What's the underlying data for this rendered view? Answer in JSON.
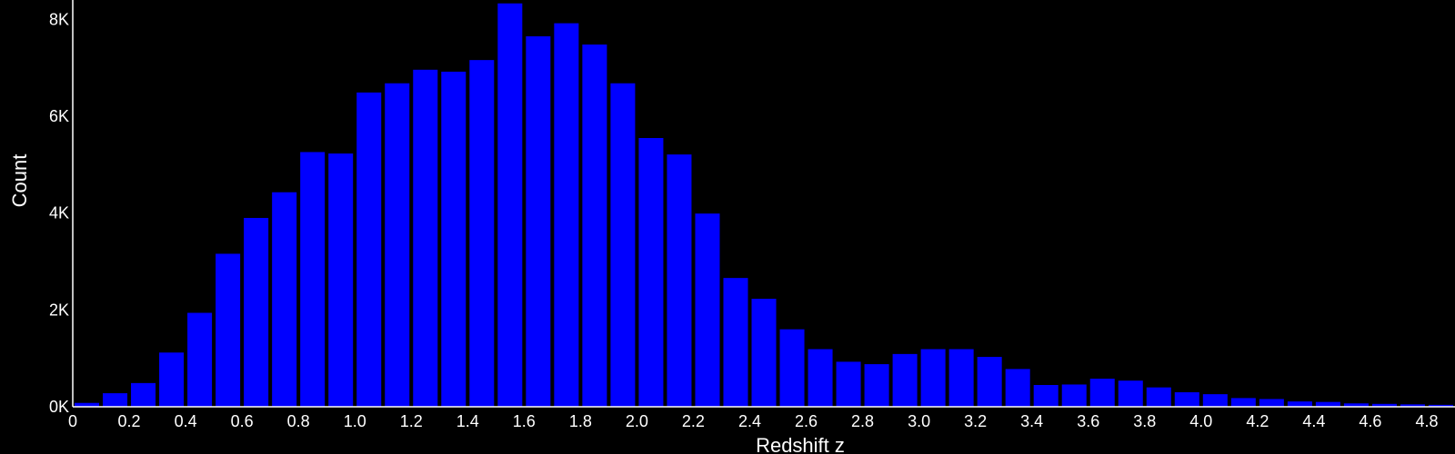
{
  "chart_data": {
    "type": "bar",
    "title": "",
    "xlabel": "Redshift z",
    "ylabel": "Count",
    "bin_width": 0.1,
    "x_bin_starts": [
      0.0,
      0.1,
      0.2,
      0.3,
      0.4,
      0.5,
      0.6,
      0.7,
      0.8,
      0.9,
      1.0,
      1.1,
      1.2,
      1.3,
      1.4,
      1.5,
      1.6,
      1.7,
      1.8,
      1.9,
      2.0,
      2.1,
      2.2,
      2.3,
      2.4,
      2.5,
      2.6,
      2.7,
      2.8,
      2.9,
      3.0,
      3.1,
      3.2,
      3.3,
      3.4,
      3.5,
      3.6,
      3.7,
      3.8,
      3.9,
      4.0,
      4.1,
      4.2,
      4.3,
      4.4,
      4.5,
      4.6,
      4.7,
      4.8
    ],
    "values": [
      80,
      280,
      490,
      1120,
      1940,
      3160,
      3900,
      4430,
      5260,
      5230,
      6490,
      6680,
      6960,
      6920,
      7160,
      8330,
      7650,
      7920,
      7480,
      6680,
      5550,
      5210,
      3990,
      2660,
      2230,
      1600,
      1190,
      930,
      880,
      1090,
      1190,
      1190,
      1030,
      780,
      450,
      460,
      580,
      540,
      400,
      300,
      260,
      180,
      160,
      110,
      100,
      70,
      60,
      50,
      40
    ],
    "xlim": [
      0,
      4.9
    ],
    "ylim": [
      0,
      8400
    ],
    "x_ticks": [
      0.0,
      0.2,
      0.4,
      0.6,
      0.8,
      1.0,
      1.2,
      1.4,
      1.6,
      1.8,
      2.0,
      2.2,
      2.4,
      2.6,
      2.8,
      3.0,
      3.2,
      3.4,
      3.6,
      3.8,
      4.0,
      4.2,
      4.4,
      4.6,
      4.8
    ],
    "x_tick_labels": [
      "0",
      "0.2",
      "0.4",
      "0.6",
      "0.8",
      "1.0",
      "1.2",
      "1.4",
      "1.6",
      "1.8",
      "2.0",
      "2.2",
      "2.4",
      "2.6",
      "2.8",
      "3.0",
      "3.2",
      "3.4",
      "3.6",
      "3.8",
      "4.0",
      "4.2",
      "4.4",
      "4.6",
      "4.8"
    ],
    "y_ticks": [
      0,
      2000,
      4000,
      6000,
      8000
    ],
    "y_tick_labels": [
      "0K",
      "2K",
      "4K",
      "6K",
      "8K"
    ],
    "grid": false,
    "legend": "none",
    "colors": {
      "bar": "#0000ff",
      "background": "#000000",
      "axis": "#ffffff",
      "text": "#ffffff"
    }
  }
}
